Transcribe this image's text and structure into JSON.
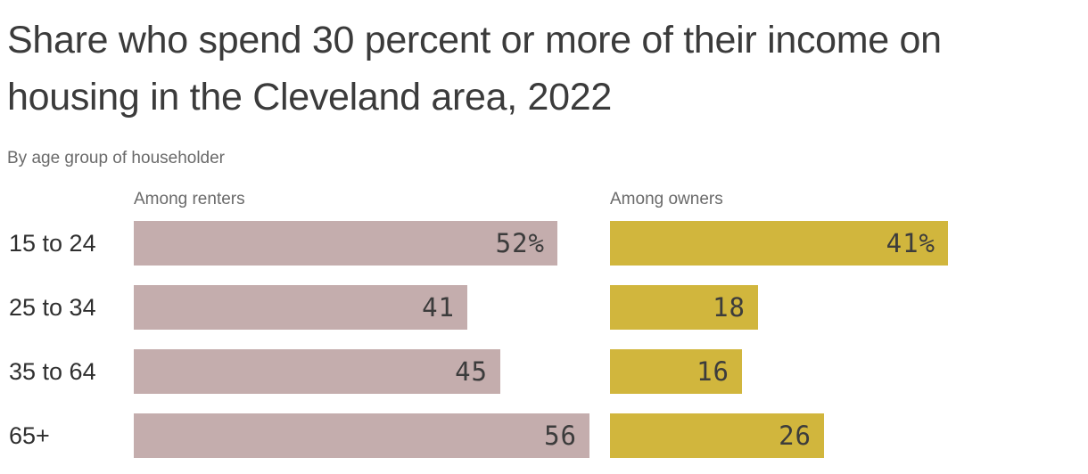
{
  "header": {
    "title": "Share who spend 30 percent or more of their income on housing in the Cleveland area, 2022",
    "subtitle": "By age group of householder"
  },
  "chart_data": {
    "type": "bar",
    "orientation": "horizontal",
    "categories": [
      "15 to 24",
      "25 to 34",
      "35 to 64",
      "65+"
    ],
    "series": [
      {
        "name": "Among renters",
        "color": "#c4adad",
        "values": [
          52,
          41,
          45,
          56
        ],
        "labels": [
          "52%",
          "41",
          "45",
          "56"
        ]
      },
      {
        "name": "Among owners",
        "color": "#d1b63d",
        "values": [
          41,
          18,
          16,
          26
        ],
        "labels": [
          "41%",
          "18",
          "16",
          "26"
        ]
      }
    ],
    "unit": "percent",
    "xlim": [
      0,
      58
    ],
    "value_label_position": "inside-end",
    "grid": false,
    "legend_position": "column-headers"
  },
  "colors": {
    "title_text": "#3b3b3b",
    "secondary_text": "#6a6a6a",
    "category_text": "#2f2f2f",
    "value_text": "#3c3c3c",
    "background": "#ffffff"
  }
}
